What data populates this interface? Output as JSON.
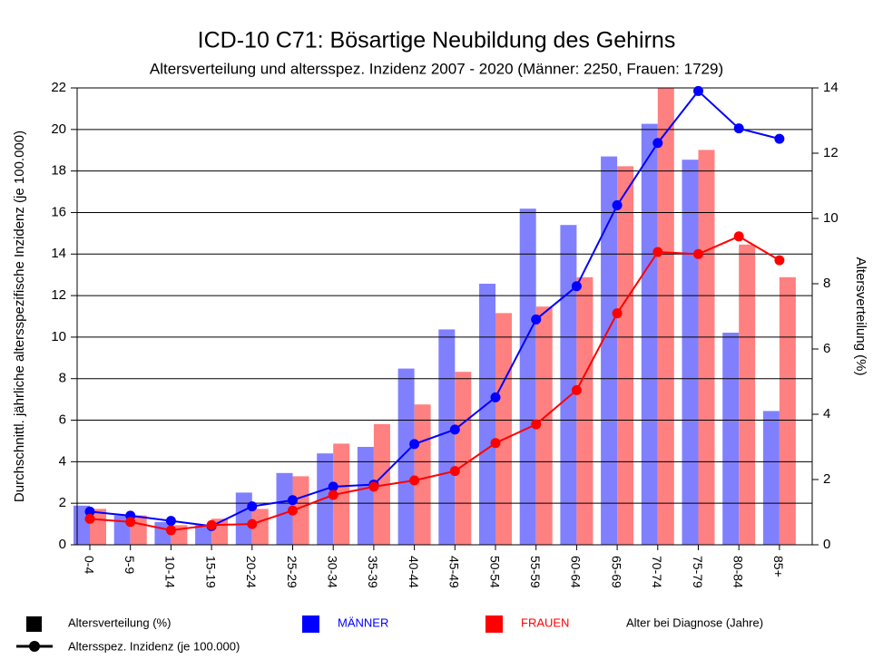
{
  "chart_data": {
    "type": "combo",
    "title": "ICD-10 C71: Bösartige Neubildung des Gehirns",
    "subtitle": "Altersverteilung und altersspez. Inzidenz 2007 - 2020 (Männer: 2250, Frauen: 1729)",
    "ylabel": "Durchschnittl. jährliche altersspezifische Inzidenz (je 100.000)",
    "y2label": "Altersverteilung (%)",
    "xlabel": "Alter bei Diagnose (Jahre)",
    "legend_items": [
      "Altersverteilung (%)",
      "Altersspez. Inzidenz (je 100.000)"
    ],
    "categories": [
      "0-4",
      "5-9",
      "10-14",
      "15-19",
      "20-24",
      "25-29",
      "30-34",
      "35-39",
      "40-44",
      "45-49",
      "50-54",
      "55-59",
      "60-64",
      "65-69",
      "70-74",
      "75-79",
      "80-84",
      "85+"
    ],
    "series": [
      {
        "name": "MÄNNER",
        "color": "#0000ff",
        "bar_color": "#8080ff",
        "distribution": [
          1.2,
          0.9,
          0.7,
          0.6,
          1.6,
          2.2,
          2.8,
          3.0,
          5.4,
          6.6,
          8.0,
          10.3,
          9.8,
          11.9,
          12.9,
          11.8,
          6.5,
          4.1
        ],
        "incidence": [
          1.6,
          1.4,
          1.15,
          0.9,
          1.85,
          2.15,
          2.8,
          2.9,
          4.85,
          5.55,
          7.1,
          10.85,
          12.45,
          16.35,
          19.35,
          21.85,
          20.05,
          19.55
        ]
      },
      {
        "name": "FRAUEN",
        "color": "#ff0000",
        "bar_color": "#ff8080",
        "distribution": [
          1.1,
          0.9,
          0.6,
          0.8,
          1.1,
          2.1,
          3.1,
          3.7,
          4.3,
          5.3,
          7.1,
          7.3,
          8.2,
          11.6,
          14.0,
          12.1,
          9.2,
          8.2
        ],
        "incidence": [
          1.25,
          1.1,
          0.7,
          0.95,
          1.0,
          1.65,
          2.4,
          2.8,
          3.1,
          3.55,
          4.9,
          5.8,
          7.45,
          11.15,
          14.1,
          14.0,
          14.85,
          13.7
        ]
      }
    ],
    "ylim": [
      0,
      22
    ],
    "yticks": [
      0,
      2,
      4,
      6,
      8,
      10,
      12,
      14,
      16,
      18,
      20,
      22
    ],
    "y2lim": [
      0,
      14
    ],
    "y2ticks": [
      0,
      2,
      4,
      6,
      8,
      10,
      12,
      14
    ],
    "grid": true
  }
}
